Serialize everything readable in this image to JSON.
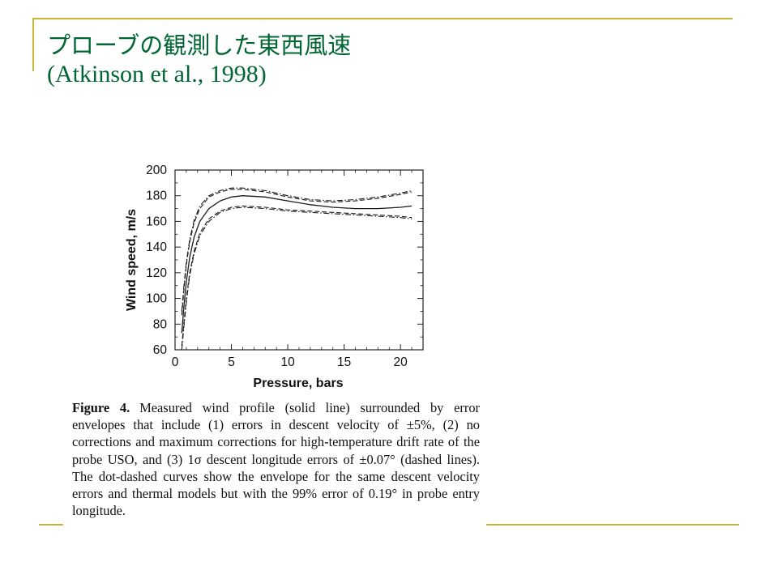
{
  "slide": {
    "title_line1": "プローブの観測した東西風速",
    "title_line2": "(Atkinson et al., 1998)",
    "accent_color": "#c8b439",
    "title_color": "#006633"
  },
  "figure": {
    "caption_label": "Figure 4.",
    "caption_text": "Measured wind profile (solid line) surrounded by error envelopes that include (1) errors in descent velocity of ±5%, (2) no corrections and maximum corrections for high-temperature drift rate of the probe USO, and (3) 1σ descent longitude errors of ±0.07° (dashed lines). The dot-dashed curves show the envelope for the same descent velocity errors and thermal models but with the 99% error of 0.19° in probe entry longitude."
  },
  "chart_data": {
    "type": "line",
    "xlabel": "Pressure, bars",
    "ylabel": "Wind speed, m/s",
    "xlim": [
      0,
      22
    ],
    "ylim": [
      60,
      200
    ],
    "x_ticks": [
      0,
      5,
      10,
      15,
      20
    ],
    "y_ticks": [
      60,
      80,
      100,
      120,
      140,
      160,
      180,
      200
    ],
    "grid": false,
    "series": [
      {
        "style": "solid",
        "x": [
          0.6,
          0.8,
          1.0,
          1.3,
          1.7,
          2.2,
          3.0,
          4.0,
          5.0,
          6.0,
          8.0,
          10.0,
          12.0,
          14.0,
          16.0,
          18.0,
          20.0,
          21.0
        ],
        "y": [
          73,
          95,
          113,
          132,
          148,
          160,
          170,
          176,
          179,
          180,
          179,
          176,
          173,
          171,
          170,
          170,
          171,
          172
        ]
      },
      {
        "style": "dashed",
        "x": [
          0.6,
          0.8,
          1.0,
          1.3,
          1.7,
          2.2,
          3.0,
          4.0,
          5.0,
          6.0,
          8.0,
          10.0,
          12.0,
          14.0,
          16.0,
          18.0,
          20.0,
          21.0
        ],
        "y": [
          87,
          108,
          126,
          144,
          159,
          170,
          179,
          183,
          185,
          185,
          183,
          179,
          176,
          175,
          176,
          178,
          181,
          183
        ]
      },
      {
        "style": "dashed",
        "x": [
          0.6,
          0.8,
          1.0,
          1.3,
          1.7,
          2.2,
          3.0,
          4.0,
          5.0,
          6.0,
          8.0,
          10.0,
          12.0,
          14.0,
          16.0,
          18.0,
          20.0,
          21.0
        ],
        "y": [
          63,
          82,
          100,
          120,
          137,
          151,
          162,
          168,
          171,
          172,
          171,
          169,
          168,
          167,
          166,
          165,
          164,
          163
        ]
      },
      {
        "style": "dot-dashed",
        "x": [
          0.6,
          0.8,
          1.0,
          1.3,
          1.7,
          2.2,
          3.0,
          4.0,
          5.0,
          6.0,
          8.0,
          10.0,
          12.0,
          14.0,
          16.0,
          18.0,
          20.0,
          21.0
        ],
        "y": [
          90,
          111,
          128,
          146,
          161,
          172,
          180,
          184,
          186,
          186,
          184,
          180,
          177,
          176,
          177,
          179,
          182,
          184
        ]
      },
      {
        "style": "dot-dashed",
        "x": [
          0.6,
          0.8,
          1.0,
          1.3,
          1.7,
          2.2,
          3.0,
          4.0,
          5.0,
          6.0,
          8.0,
          10.0,
          12.0,
          14.0,
          16.0,
          18.0,
          20.0,
          21.0
        ],
        "y": [
          60,
          79,
          97,
          118,
          135,
          149,
          160,
          167,
          170,
          171,
          170,
          168,
          167,
          166,
          165,
          164,
          163,
          162
        ]
      }
    ]
  }
}
